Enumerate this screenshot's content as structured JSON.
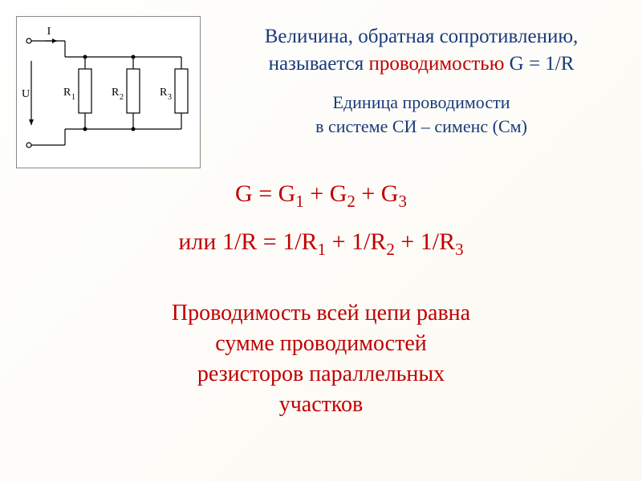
{
  "circuit": {
    "label_I": "I",
    "label_U": "U",
    "r1_label": "R",
    "r1_sub": "1",
    "r2_label": "R",
    "r2_sub": "2",
    "r3_label": "R",
    "r3_sub": "3",
    "stroke_color": "#000000",
    "fill_color": "#ffffff",
    "text_color": "#000000",
    "font_size": 14,
    "line_width": 1.2
  },
  "text": {
    "line1": "Величина, обратная сопротивлению,",
    "line2_part1": "называется ",
    "line2_red": "проводимостью",
    "line2_part2": " G = 1/R",
    "line3": "Единица проводимости",
    "line4": "в системе СИ – сименс (См)",
    "formula1_html": "G = G<sub>1</sub> + G<sub>2</sub> + G<sub>3</sub>",
    "formula2_html": "или 1/R = 1/R<sub>1</sub> + 1/R<sub>2</sub> + 1/R<sub>3</sub>",
    "line5": "Проводимость всей цепи равна",
    "line6": "сумме проводимостей",
    "line7": "резисторов параллельных",
    "line8": "участков"
  },
  "colors": {
    "blue": "#1a3a7a",
    "red": "#c00000",
    "background_start": "#fefefe",
    "background_end": "#fcf9f2",
    "circuit_border": "#888888"
  },
  "typography": {
    "main_fontsize": 25,
    "sub_fontsize": 22,
    "formula_fontsize": 30,
    "conclusion_fontsize": 28,
    "font_family": "Georgia, Times New Roman, serif"
  }
}
